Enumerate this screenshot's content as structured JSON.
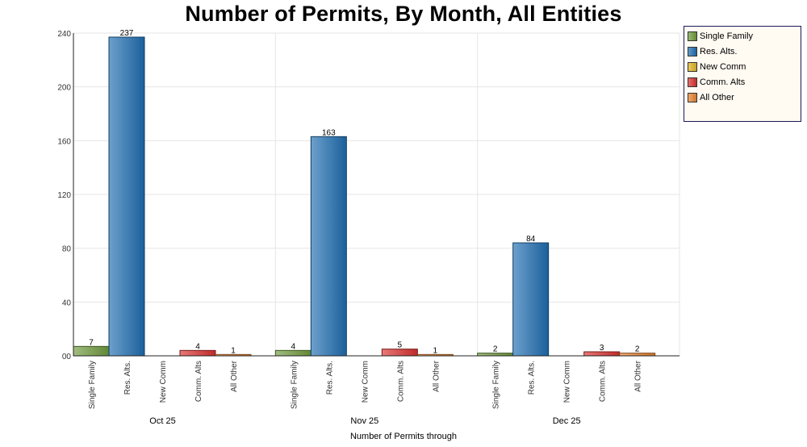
{
  "chart_data": {
    "type": "bar",
    "title": "Number of Permits, By Month, All Entities",
    "xlabel": "Number of Permits  through",
    "ylabel": "",
    "ylim": [
      0,
      240
    ],
    "yticks": [
      "00",
      "40",
      "80",
      "120",
      "160",
      "200",
      "240"
    ],
    "grid": true,
    "legend_position": "top-right",
    "categories": [
      "Oct 25",
      "Nov 25",
      "Dec 25"
    ],
    "series": [
      {
        "name": "Single Family",
        "color": "#6e9a3c",
        "values": [
          7,
          4,
          2
        ]
      },
      {
        "name": "Res. Alts.",
        "color": "#1f6db0",
        "values": [
          237,
          163,
          84
        ]
      },
      {
        "name": "New Comm",
        "color": "#e0b420",
        "values": [
          0,
          0,
          0
        ]
      },
      {
        "name": "Comm. Alts",
        "color": "#d9312f",
        "values": [
          4,
          5,
          3
        ]
      },
      {
        "name": "All Other",
        "color": "#e8832e",
        "values": [
          1,
          1,
          2
        ]
      }
    ]
  }
}
